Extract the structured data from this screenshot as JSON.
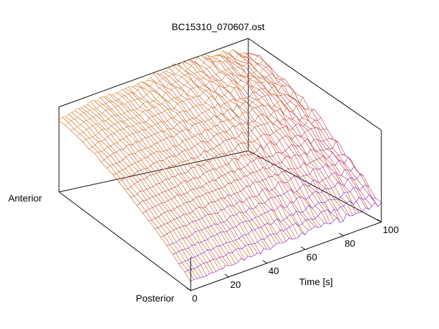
{
  "chart_data": {
    "type": "surface",
    "title": "BC15310_070607.ost",
    "xlabel": "Time [s]",
    "x_ticks": [
      "0",
      "20",
      "40",
      "60",
      "80",
      "100"
    ],
    "xlim": [
      0,
      100
    ],
    "y_end_labels": {
      "anterior": "Anterior",
      "posterior": "Posterior"
    },
    "grid": false,
    "colormap": [
      "#8a2be2",
      "#c04060",
      "#d07020",
      "#f0c040",
      "#ffff60"
    ],
    "surface_profile": {
      "time": [
        0,
        10,
        20,
        30,
        40,
        50,
        60,
        70,
        80,
        90,
        100
      ],
      "anterior_height": [
        0.62,
        0.68,
        0.72,
        0.74,
        0.78,
        0.82,
        0.86,
        0.88,
        0.9,
        0.88,
        0.86
      ],
      "posterior_height": [
        0.08,
        0.09,
        0.1,
        0.11,
        0.12,
        0.13,
        0.14,
        0.15,
        0.15,
        0.16,
        0.16
      ]
    }
  }
}
